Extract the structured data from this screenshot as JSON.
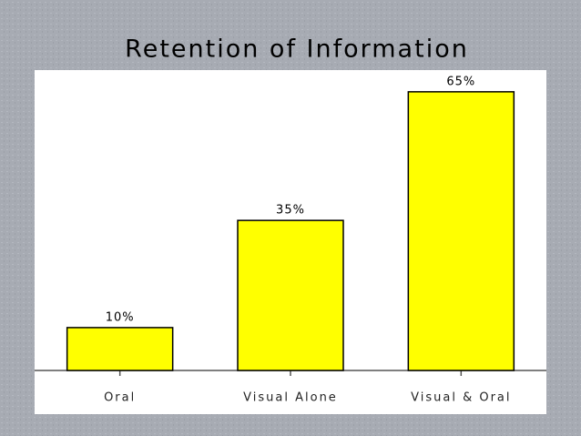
{
  "chart_data": {
    "type": "bar",
    "title": "Retention of Information",
    "categories": [
      "Oral",
      "Visual Alone",
      "Visual & Oral"
    ],
    "values": [
      10,
      35,
      65
    ],
    "value_labels": [
      "10%",
      "35%",
      "65%"
    ],
    "color": "#ffff00"
  }
}
